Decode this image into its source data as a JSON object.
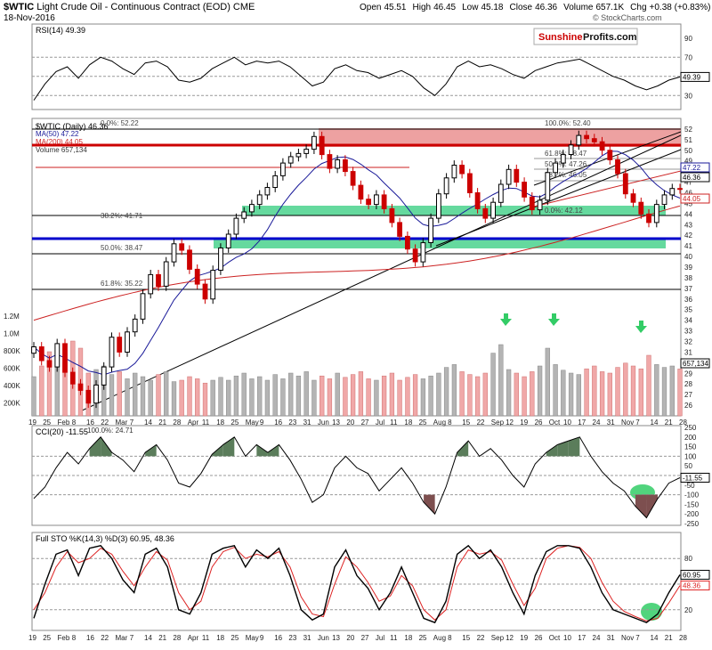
{
  "header": {
    "symbol": "$WTIC",
    "name": "Light Crude Oil - Continuous Contract (EOD)",
    "exchange": "CME",
    "date": "18-Nov-2016",
    "open_label": "Open",
    "open": "45.51",
    "high_label": "High",
    "high": "46.45",
    "low_label": "Low",
    "low": "45.18",
    "close_label": "Close",
    "close": "46.36",
    "volume_label": "Volume",
    "volume": "657.1K",
    "chg_label": "Chg",
    "chg": "+0.38 (+0.83%)",
    "watermark": "© StockCharts.com",
    "brand_sunshine": "Sunshine",
    "brand_profits": "Profits.com"
  },
  "colors": {
    "up": "#000000",
    "down": "#cc0000",
    "ma50": "#1a1a99",
    "ma200": "#cc2222",
    "resistance_zone": "#e88a8a",
    "support_zone": "#3ecf86",
    "signal": "#33cc66"
  },
  "chart_data": [
    {
      "type": "line",
      "title": "RSI(14) 49.39",
      "series": [
        {
          "name": "RSI(14)",
          "value": 49.39,
          "values": [
            25,
            42,
            55,
            60,
            48,
            62,
            70,
            66,
            58,
            52,
            64,
            66,
            60,
            46,
            44,
            48,
            58,
            64,
            70,
            62,
            66,
            64,
            66,
            60,
            50,
            40,
            44,
            58,
            62,
            56,
            54,
            48,
            52,
            56,
            50,
            38,
            30,
            42,
            60,
            66,
            60,
            62,
            58,
            52,
            48,
            56,
            60,
            64,
            66,
            68,
            62,
            56,
            50,
            46,
            40,
            36,
            40,
            46,
            49.39
          ]
        }
      ],
      "reference_lines": [
        30,
        50,
        70
      ],
      "yticks": [
        30,
        50,
        70,
        90
      ],
      "current_label": "49.39"
    },
    {
      "type": "candlestick",
      "title": "$WTIC (Daily) 46.36",
      "legend": [
        "MA(50) 47.22",
        "MA(200) 44.05",
        "Volume 657,134"
      ],
      "ylim": [
        25,
        53
      ],
      "yticks": [
        26,
        27,
        28,
        29,
        30,
        31,
        32,
        33,
        34,
        35,
        36,
        37,
        38,
        39,
        40,
        41,
        42,
        43,
        44,
        45,
        46,
        47,
        48,
        49,
        50,
        51,
        52
      ],
      "xticks": [
        "19",
        "25",
        "Feb",
        "8",
        "16",
        "22",
        "Mar",
        "7",
        "14",
        "21",
        "28",
        "Apr",
        "11",
        "18",
        "25",
        "May",
        "9",
        "16",
        "23",
        "31",
        "Jun",
        "13",
        "20",
        "27",
        "Jul",
        "11",
        "18",
        "25",
        "Aug",
        "8",
        "15",
        "22",
        "Sep",
        "12",
        "19",
        "26",
        "Oct",
        "10",
        "17",
        "24",
        "31",
        "Nov",
        "7",
        "14",
        "21",
        "28"
      ],
      "close_series": [
        31.5,
        30.2,
        29.6,
        31.8,
        29.1,
        28.0,
        27.4,
        26.2,
        27.9,
        29.6,
        32.4,
        31.0,
        32.9,
        34.1,
        36.5,
        38.3,
        37.2,
        39.5,
        41.2,
        40.6,
        38.8,
        37.4,
        36.0,
        38.7,
        40.8,
        42.1,
        43.6,
        44.2,
        44.9,
        45.8,
        46.5,
        47.6,
        48.8,
        49.4,
        49.7,
        50.1,
        51.3,
        49.6,
        48.3,
        49.1,
        48.0,
        46.7,
        45.4,
        44.9,
        45.8,
        44.5,
        43.2,
        41.9,
        40.7,
        39.5,
        41.3,
        43.6,
        45.9,
        47.4,
        48.6,
        47.8,
        46.0,
        44.5,
        43.6,
        45.1,
        46.8,
        48.2,
        47.0,
        45.6,
        44.4,
        45.3,
        47.9,
        48.8,
        49.6,
        50.5,
        51.4,
        51.1,
        50.8,
        50.0,
        49.1,
        47.8,
        45.9,
        45.1,
        44.0,
        43.2,
        44.9,
        45.8,
        46.4,
        46.36
      ],
      "volume_series": [
        0.55,
        0.7,
        0.9,
        0.82,
        0.75,
        1.05,
        0.95,
        0.6,
        0.65,
        0.7,
        0.58,
        0.62,
        0.52,
        0.6,
        0.55,
        0.5,
        0.58,
        0.62,
        0.48,
        0.5,
        0.55,
        0.52,
        0.46,
        0.5,
        0.54,
        0.5,
        0.56,
        0.6,
        0.52,
        0.55,
        0.5,
        0.58,
        0.52,
        0.6,
        0.56,
        0.62,
        0.5,
        0.56,
        0.52,
        0.6,
        0.54,
        0.58,
        0.62,
        0.52,
        0.5,
        0.56,
        0.6,
        0.5,
        0.54,
        0.58,
        0.52,
        0.56,
        0.6,
        0.68,
        0.72,
        0.62,
        0.58,
        0.55,
        0.6,
        0.88,
        1.0,
        0.65,
        0.6,
        0.55,
        0.62,
        0.7,
        0.95,
        0.72,
        0.64,
        0.6,
        0.58,
        0.66,
        0.7,
        0.62,
        0.6,
        0.68,
        0.74,
        0.7,
        0.66,
        0.85,
        0.72,
        0.68,
        0.7,
        0.657
      ],
      "volume_axis": [
        "1.2M",
        "1.0M",
        "800K",
        "600K",
        "400K",
        "200K"
      ],
      "volume_current": "657,134",
      "annotations": [
        {
          "label": "0.0%: 52.22",
          "y": 52.22
        },
        {
          "label": "100.0%: 52.40",
          "y": 52.4
        },
        {
          "label": "61.8%: 48.47",
          "y": 48.47
        },
        {
          "label": "50.0%: 47.26",
          "y": 47.26
        },
        {
          "label": "38.2%: 46.05",
          "y": 46.05
        },
        {
          "label": "0.0%: 42.12",
          "y": 42.12
        },
        {
          "label": "38.2%: 41.71",
          "y": 41.71
        },
        {
          "label": "50.0%: 38.47",
          "y": 38.47
        },
        {
          "label": "61.8%: 35.22",
          "y": 35.22
        }
      ],
      "price_labels": [
        {
          "value": "47.22",
          "kind": "ma50"
        },
        {
          "value": "46.36",
          "kind": "last"
        },
        {
          "value": "44.05",
          "kind": "ma200"
        }
      ],
      "resistance_zone": [
        50.0,
        52.2
      ],
      "support_zones": [
        [
          42.2,
          43.0
        ],
        [
          38.9,
          39.7
        ]
      ],
      "key_levels": [
        {
          "value": 50.0,
          "color": "#cc0000"
        },
        {
          "value": 40.0,
          "color": "#0000cc"
        }
      ]
    },
    {
      "type": "line",
      "title": "CCI(20) -11.55",
      "series": [
        {
          "name": "CCI(20)",
          "value": -11.55,
          "values": [
            -120,
            -60,
            40,
            120,
            60,
            140,
            200,
            120,
            80,
            20,
            120,
            160,
            80,
            -40,
            -60,
            10,
            110,
            160,
            200,
            100,
            160,
            120,
            160,
            80,
            -20,
            -140,
            -100,
            40,
            100,
            40,
            10,
            -80,
            -20,
            40,
            -40,
            -140,
            -200,
            -60,
            120,
            180,
            100,
            140,
            80,
            0,
            -60,
            60,
            120,
            160,
            180,
            200,
            100,
            20,
            -40,
            -80,
            -160,
            -220,
            -120,
            -40,
            -11.55
          ]
        }
      ],
      "reference_lines": [
        100,
        0,
        -100
      ],
      "yticks": [
        250,
        200,
        150,
        100,
        50,
        0,
        -50,
        -100,
        -150,
        -200,
        -250
      ],
      "annotation": "100.0%: 24.71",
      "current_label": "-11.55"
    },
    {
      "type": "line",
      "title": "Full STO %K(14,3) %D(3) 60.95, 48.36",
      "series": [
        {
          "name": "%K(14,3)",
          "value": 60.95,
          "values": [
            10,
            50,
            85,
            90,
            60,
            92,
            95,
            80,
            55,
            40,
            85,
            92,
            70,
            20,
            15,
            40,
            85,
            92,
            95,
            70,
            90,
            80,
            92,
            60,
            20,
            8,
            15,
            70,
            90,
            60,
            45,
            20,
            40,
            70,
            40,
            10,
            5,
            30,
            85,
            95,
            80,
            90,
            70,
            40,
            15,
            60,
            88,
            95,
            95,
            92,
            70,
            40,
            20,
            15,
            10,
            5,
            15,
            40,
            60.95
          ]
        },
        {
          "name": "%D(3)",
          "value": 48.36,
          "values": [
            20,
            40,
            70,
            88,
            75,
            80,
            92,
            85,
            65,
            48,
            70,
            88,
            78,
            40,
            20,
            30,
            70,
            88,
            93,
            80,
            85,
            82,
            88,
            70,
            35,
            15,
            12,
            50,
            82,
            70,
            52,
            30,
            36,
            60,
            48,
            20,
            8,
            20,
            70,
            90,
            85,
            88,
            78,
            50,
            25,
            45,
            80,
            92,
            95,
            93,
            80,
            52,
            30,
            18,
            12,
            7,
            10,
            28,
            48.36
          ]
        }
      ],
      "reference_lines": [
        80,
        50,
        20
      ],
      "yticks": [
        80,
        20
      ],
      "current_labels": [
        "60.95",
        "48.36"
      ]
    }
  ]
}
